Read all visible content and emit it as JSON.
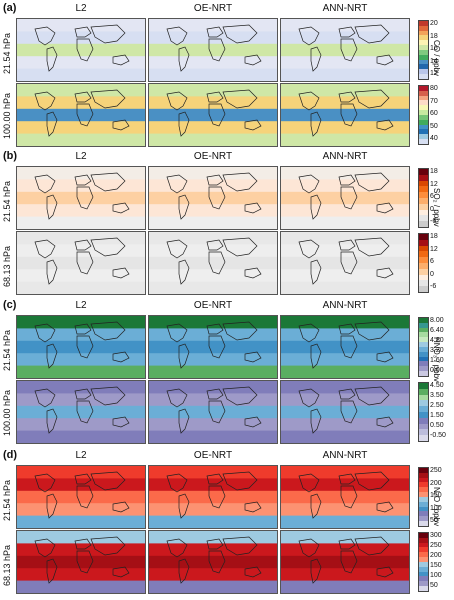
{
  "panels": [
    {
      "letter": "(a)",
      "columns": [
        "L2",
        "OE-NRT",
        "ANN-NRT"
      ],
      "rows": [
        "21.54 hPa",
        "100.00 hPa"
      ],
      "colorbars": [
        {
          "ticks": [
            "20",
            "18",
            "16",
            "14",
            "12"
          ],
          "colors": [
            "#c0392b",
            "#e06a3b",
            "#f3a35a",
            "#f6d37a",
            "#fdf3b4",
            "#cfe7a6",
            "#7fc97f",
            "#41ab5d",
            "#4a90c4",
            "#2166ac",
            "#b9c6ea",
            "#d7dff2"
          ]
        },
        {
          "ticks": [
            "80",
            "70",
            "60",
            "50",
            "40"
          ],
          "colors": [
            "#b2182b",
            "#d6604d",
            "#f4a582",
            "#fddbc7",
            "#f7f7b5",
            "#c7e9a0",
            "#74c476",
            "#41ab5d",
            "#4292c6",
            "#2171b5",
            "#9ecae1",
            "#d7dff2"
          ]
        }
      ],
      "unit": "CO / ppbv"
    },
    {
      "letter": "(b)",
      "columns": [
        "L2",
        "OE-NRT",
        "ANN-NRT"
      ],
      "rows": [
        "21.54 hPa",
        "68.13 hPa"
      ],
      "colorbars": [
        {
          "ticks": [
            "18",
            "12",
            "6",
            "0",
            "-6"
          ],
          "colors": [
            "#67000d",
            "#a50f15",
            "#d94801",
            "#f16913",
            "#fd8d3c",
            "#fdae6b",
            "#fdd0a2",
            "#feeee0",
            "#e5e5e5",
            "#cccccc"
          ]
        },
        {
          "ticks": [
            "18",
            "12",
            "6",
            "0",
            "-6"
          ],
          "colors": [
            "#67000d",
            "#a50f15",
            "#d94801",
            "#f16913",
            "#fd8d3c",
            "#fdae6b",
            "#fdd0a2",
            "#feeee0",
            "#e5e5e5",
            "#cccccc"
          ]
        }
      ],
      "unit": "SO₂ / ppbv"
    },
    {
      "letter": "(c)",
      "columns": [
        "L2",
        "OE-NRT",
        "ANN-NRT"
      ],
      "rows": [
        "21.54 hPa",
        "100.00 hPa"
      ],
      "colorbars": [
        {
          "ticks": [
            "8.00",
            "6.40",
            "4.80",
            "3.20",
            "1.60",
            "0.00"
          ],
          "colors": [
            "#1b7837",
            "#35978f",
            "#5aae61",
            "#a6dba0",
            "#c7e9c0",
            "#9ecae1",
            "#6baed6",
            "#4292c6",
            "#2171b5",
            "#807dba",
            "#9e9ac8",
            "#cbc9e2"
          ]
        },
        {
          "ticks": [
            "4.50",
            "3.50",
            "2.50",
            "1.50",
            "0.50",
            "-0.50"
          ],
          "colors": [
            "#1b7837",
            "#5aae61",
            "#a6dba0",
            "#9ecae1",
            "#6baed6",
            "#4292c6",
            "#807dba",
            "#9e9ac8",
            "#bcbddc",
            "#dadaeb"
          ]
        }
      ],
      "unit": "HNO₃ / ppbv"
    },
    {
      "letter": "(d)",
      "columns": [
        "L2",
        "OE-NRT",
        "ANN-NRT"
      ],
      "rows": [
        "21.54 hPa",
        "68.13 hPa"
      ],
      "colorbars": [
        {
          "ticks": [
            "250",
            "200",
            "150",
            "100",
            "50"
          ],
          "colors": [
            "#67000d",
            "#a50f15",
            "#cb181d",
            "#ef3b2c",
            "#fb6a4a",
            "#fc9272",
            "#9ecae1",
            "#6baed6",
            "#4292c6",
            "#807dba",
            "#9e9ac8",
            "#dadaeb"
          ]
        },
        {
          "ticks": [
            "300",
            "250",
            "200",
            "150",
            "100",
            "50"
          ],
          "colors": [
            "#67000d",
            "#a50f15",
            "#cb181d",
            "#ef3b2c",
            "#fb6a4a",
            "#fc9272",
            "#9ecae1",
            "#6baed6",
            "#4292c6",
            "#807dba",
            "#9e9ac8",
            "#dadaeb"
          ]
        }
      ],
      "unit": "N₂O / ppbv"
    }
  ]
}
